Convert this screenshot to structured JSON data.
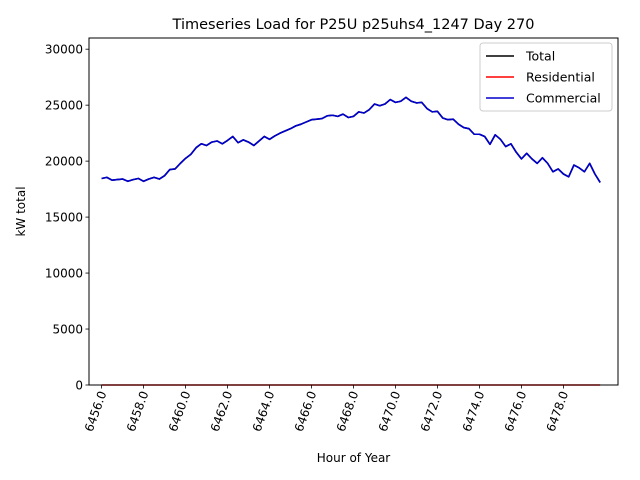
{
  "chart_data": {
    "type": "line",
    "title": "Timeseries Load for P25U p25uhs4_1247  Day 270",
    "xlabel": "Hour of Year",
    "ylabel": "kW total",
    "xlim": [
      6455.4,
      6480.6
    ],
    "ylim": [
      0,
      31000
    ],
    "x_ticks": [
      6456,
      6458,
      6460,
      6462,
      6464,
      6466,
      6468,
      6470,
      6472,
      6474,
      6476,
      6478
    ],
    "x_tick_labels": [
      "6456.0",
      "6458.0",
      "6460.0",
      "6462.0",
      "6464.0",
      "6466.0",
      "6468.0",
      "6470.0",
      "6472.0",
      "6474.0",
      "6476.0",
      "6478.0"
    ],
    "y_ticks": [
      0,
      5000,
      10000,
      15000,
      20000,
      25000,
      30000
    ],
    "y_tick_labels": [
      "0",
      "5000",
      "10000",
      "15000",
      "20000",
      "25000",
      "30000"
    ],
    "legend_position": "top-right",
    "x_start": 6456,
    "x_step": 0.25,
    "series": [
      {
        "name": "Total",
        "color": "#000000",
        "values": [
          18450,
          18550,
          18300,
          18350,
          18400,
          18200,
          18350,
          18450,
          18200,
          18400,
          18550,
          18400,
          18700,
          19250,
          19300,
          19800,
          20250,
          20600,
          21200,
          21550,
          21400,
          21700,
          21800,
          21550,
          21850,
          22200,
          21650,
          21900,
          21700,
          21400,
          21800,
          22200,
          21950,
          22250,
          22500,
          22700,
          22900,
          23150,
          23300,
          23500,
          23700,
          23750,
          23800,
          24050,
          24100,
          24000,
          24200,
          23900,
          24000,
          24400,
          24300,
          24600,
          25100,
          24950,
          25100,
          25500,
          25250,
          25350,
          25700,
          25350,
          25200,
          25250,
          24700,
          24400,
          24450,
          23850,
          23700,
          23750,
          23300,
          23000,
          22900,
          22400,
          22400,
          22200,
          21500,
          22350,
          21950,
          21300,
          21550,
          20800,
          20200,
          20700,
          20200,
          19800,
          20300,
          19800,
          19050,
          19300,
          18850,
          18600,
          19650,
          19400,
          19050,
          19800,
          18850,
          18100
        ]
      },
      {
        "name": "Residential",
        "color": "#ff0000",
        "values": [
          0,
          0,
          0,
          0,
          0,
          0,
          0,
          0,
          0,
          0,
          0,
          0,
          0,
          0,
          0,
          0,
          0,
          0,
          0,
          0,
          0,
          0,
          0,
          0,
          0,
          0,
          0,
          0,
          0,
          0,
          0,
          0,
          0,
          0,
          0,
          0,
          0,
          0,
          0,
          0,
          0,
          0,
          0,
          0,
          0,
          0,
          0,
          0,
          0,
          0,
          0,
          0,
          0,
          0,
          0,
          0,
          0,
          0,
          0,
          0,
          0,
          0,
          0,
          0,
          0,
          0,
          0,
          0,
          0,
          0,
          0,
          0,
          0,
          0,
          0,
          0,
          0,
          0,
          0,
          0,
          0,
          0,
          0,
          0,
          0,
          0,
          0,
          0,
          0,
          0,
          0,
          0,
          0,
          0,
          0,
          0
        ]
      },
      {
        "name": "Commercial",
        "color": "#0000cc",
        "values": [
          18450,
          18550,
          18300,
          18350,
          18400,
          18200,
          18350,
          18450,
          18200,
          18400,
          18550,
          18400,
          18700,
          19250,
          19300,
          19800,
          20250,
          20600,
          21200,
          21550,
          21400,
          21700,
          21800,
          21550,
          21850,
          22200,
          21650,
          21900,
          21700,
          21400,
          21800,
          22200,
          21950,
          22250,
          22500,
          22700,
          22900,
          23150,
          23300,
          23500,
          23700,
          23750,
          23800,
          24050,
          24100,
          24000,
          24200,
          23900,
          24000,
          24400,
          24300,
          24600,
          25100,
          24950,
          25100,
          25500,
          25250,
          25350,
          25700,
          25350,
          25200,
          25250,
          24700,
          24400,
          24450,
          23850,
          23700,
          23750,
          23300,
          23000,
          22900,
          22400,
          22400,
          22200,
          21500,
          22350,
          21950,
          21300,
          21550,
          20800,
          20200,
          20700,
          20200,
          19800,
          20300,
          19800,
          19050,
          19300,
          18850,
          18600,
          19650,
          19400,
          19050,
          19800,
          18850,
          18100
        ]
      }
    ]
  }
}
